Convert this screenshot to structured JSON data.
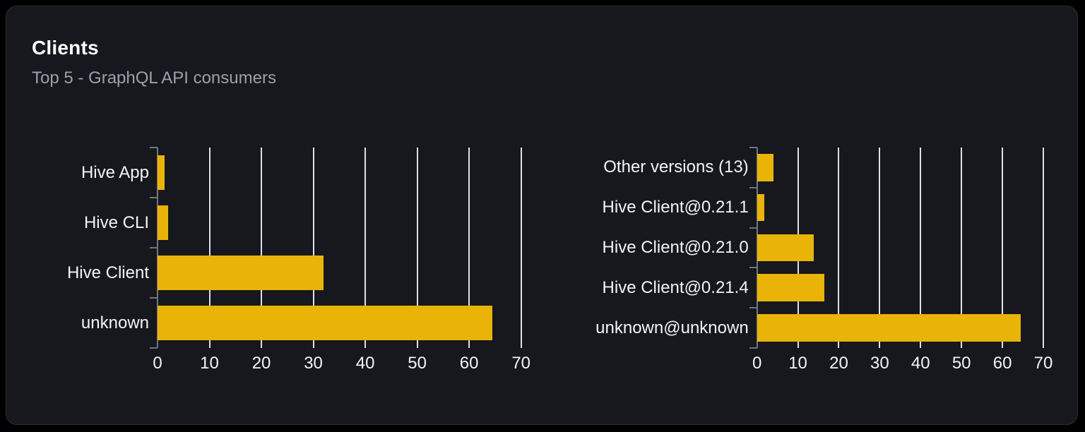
{
  "card": {
    "title": "Clients",
    "subtitle": "Top 5 - GraphQL API consumers"
  },
  "colors": {
    "page_bg": "#000000",
    "card_bg": "#16181d",
    "card_border": "#2b2e36",
    "title": "#ffffff",
    "subtitle": "#9aa1ab",
    "label": "#f3f4f6",
    "tick_label": "#f3f4f6",
    "grid": "#dde0e6",
    "axis": "#71767f",
    "bar": "#eab308"
  },
  "chart_data": [
    {
      "type": "bar",
      "orientation": "horizontal",
      "title": "",
      "xlabel": "",
      "ylabel": "",
      "categories": [
        "Hive App",
        "Hive CLI",
        "Hive Client",
        "unknown"
      ],
      "values": [
        1.3,
        2,
        32,
        64.5
      ],
      "xlim": [
        0,
        70
      ],
      "x_ticks": [
        0,
        10,
        20,
        30,
        40,
        50,
        60,
        70
      ],
      "grid": true,
      "legend": false,
      "bar_color": "#eab308"
    },
    {
      "type": "bar",
      "orientation": "horizontal",
      "title": "",
      "xlabel": "",
      "ylabel": "",
      "categories": [
        "Other versions (13)",
        "Hive Client@0.21.1",
        "Hive Client@0.21.0",
        "Hive Client@0.21.4",
        "unknown@unknown"
      ],
      "values": [
        4,
        1.8,
        13.8,
        16.4,
        64.5
      ],
      "xlim": [
        0,
        70
      ],
      "x_ticks": [
        0,
        10,
        20,
        30,
        40,
        50,
        60,
        70
      ],
      "grid": true,
      "legend": false,
      "bar_color": "#eab308"
    }
  ]
}
